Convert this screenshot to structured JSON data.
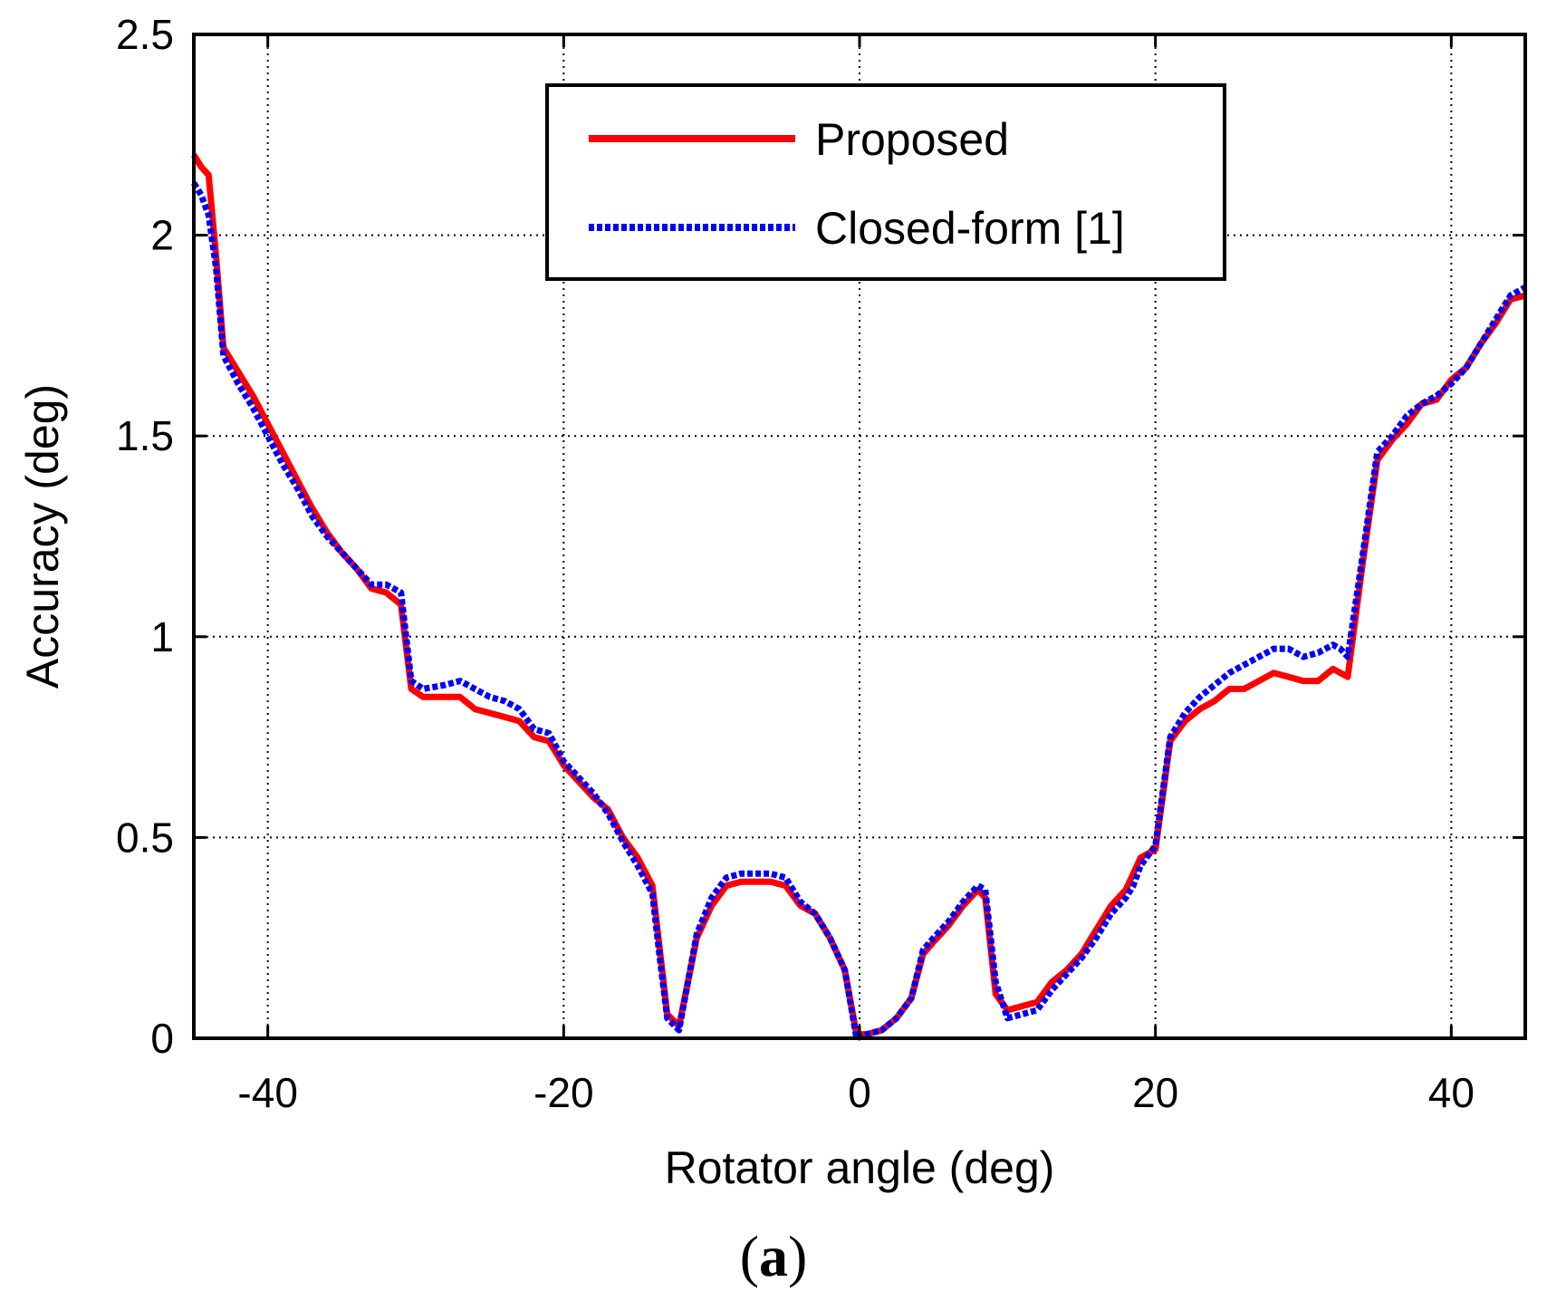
{
  "chart_data": {
    "type": "line",
    "xlabel": "Rotator angle (deg)",
    "ylabel": "Accuracy (deg)",
    "panel_label": {
      "open": "(",
      "letter": "a",
      "close": ")"
    },
    "xlim": [
      -45,
      45
    ],
    "ylim": [
      0,
      2.5
    ],
    "xticks": [
      -40,
      -20,
      0,
      20,
      40
    ],
    "xtick_labels": [
      "-40",
      "-20",
      "0",
      "20",
      "40"
    ],
    "yticks": [
      0,
      0.5,
      1,
      1.5,
      2,
      2.5
    ],
    "ytick_labels": [
      "0",
      "0.5",
      "1",
      "1.5",
      "2",
      "2.5"
    ],
    "grid": true,
    "legend_position": "top-center",
    "colors": {
      "proposed": "#ff0000",
      "closed_form": "#0000ff"
    },
    "series": [
      {
        "name": "Proposed",
        "style": "solid",
        "color": "#ff0000",
        "points": [
          [
            -45,
            2.2
          ],
          [
            -44.5,
            2.17
          ],
          [
            -44,
            2.15
          ],
          [
            -43.5,
            1.95
          ],
          [
            -43,
            1.72
          ],
          [
            -42,
            1.66
          ],
          [
            -41,
            1.6
          ],
          [
            -40,
            1.53
          ],
          [
            -39,
            1.46
          ],
          [
            -38,
            1.39
          ],
          [
            -37,
            1.32
          ],
          [
            -36,
            1.26
          ],
          [
            -35,
            1.21
          ],
          [
            -34,
            1.17
          ],
          [
            -33,
            1.12
          ],
          [
            -32,
            1.11
          ],
          [
            -31,
            1.08
          ],
          [
            -30.3,
            0.87
          ],
          [
            -29.5,
            0.85
          ],
          [
            -28,
            0.85
          ],
          [
            -27,
            0.85
          ],
          [
            -26,
            0.82
          ],
          [
            -25,
            0.81
          ],
          [
            -24,
            0.8
          ],
          [
            -23,
            0.79
          ],
          [
            -22,
            0.75
          ],
          [
            -21,
            0.74
          ],
          [
            -20,
            0.68
          ],
          [
            -19,
            0.64
          ],
          [
            -18,
            0.6
          ],
          [
            -17,
            0.57
          ],
          [
            -16,
            0.5
          ],
          [
            -15,
            0.45
          ],
          [
            -14,
            0.38
          ],
          [
            -13.5,
            0.22
          ],
          [
            -13,
            0.06
          ],
          [
            -12.2,
            0.03
          ],
          [
            -11,
            0.25
          ],
          [
            -10,
            0.33
          ],
          [
            -9,
            0.38
          ],
          [
            -8,
            0.39
          ],
          [
            -7,
            0.39
          ],
          [
            -6,
            0.39
          ],
          [
            -5,
            0.38
          ],
          [
            -4,
            0.33
          ],
          [
            -3,
            0.31
          ],
          [
            -2,
            0.25
          ],
          [
            -1,
            0.17
          ],
          [
            -0.2,
            0.01
          ],
          [
            0.5,
            0.01
          ],
          [
            1.5,
            0.02
          ],
          [
            2.5,
            0.05
          ],
          [
            3.5,
            0.1
          ],
          [
            4.3,
            0.21
          ],
          [
            5,
            0.24
          ],
          [
            6,
            0.28
          ],
          [
            7,
            0.33
          ],
          [
            8,
            0.37
          ],
          [
            8.5,
            0.35
          ],
          [
            9.2,
            0.11
          ],
          [
            10,
            0.07
          ],
          [
            11,
            0.08
          ],
          [
            12,
            0.09
          ],
          [
            13,
            0.14
          ],
          [
            14,
            0.17
          ],
          [
            15,
            0.21
          ],
          [
            16,
            0.27
          ],
          [
            17,
            0.33
          ],
          [
            18,
            0.37
          ],
          [
            18.5,
            0.41
          ],
          [
            19,
            0.45
          ],
          [
            20,
            0.47
          ],
          [
            21,
            0.74
          ],
          [
            22,
            0.79
          ],
          [
            23,
            0.82
          ],
          [
            24,
            0.84
          ],
          [
            25,
            0.87
          ],
          [
            26,
            0.87
          ],
          [
            27,
            0.89
          ],
          [
            28,
            0.91
          ],
          [
            29,
            0.9
          ],
          [
            30,
            0.89
          ],
          [
            31,
            0.89
          ],
          [
            32,
            0.92
          ],
          [
            32.5,
            0.91
          ],
          [
            33,
            0.9
          ],
          [
            34,
            1.18
          ],
          [
            35,
            1.44
          ],
          [
            36,
            1.49
          ],
          [
            37,
            1.53
          ],
          [
            38,
            1.58
          ],
          [
            39,
            1.59
          ],
          [
            40,
            1.64
          ],
          [
            41,
            1.67
          ],
          [
            42,
            1.73
          ],
          [
            43,
            1.78
          ],
          [
            44,
            1.84
          ],
          [
            45,
            1.85
          ]
        ]
      },
      {
        "name": "Closed-form [1]",
        "style": "dotted",
        "color": "#0000ff",
        "points": [
          [
            -45,
            2.13
          ],
          [
            -44.5,
            2.1
          ],
          [
            -44,
            2.05
          ],
          [
            -43.5,
            1.92
          ],
          [
            -43,
            1.7
          ],
          [
            -42,
            1.63
          ],
          [
            -41,
            1.57
          ],
          [
            -40,
            1.5
          ],
          [
            -39,
            1.43
          ],
          [
            -38,
            1.37
          ],
          [
            -37,
            1.3
          ],
          [
            -36,
            1.25
          ],
          [
            -35,
            1.21
          ],
          [
            -34,
            1.17
          ],
          [
            -33,
            1.13
          ],
          [
            -32,
            1.13
          ],
          [
            -31,
            1.11
          ],
          [
            -30.3,
            0.89
          ],
          [
            -29.5,
            0.87
          ],
          [
            -28,
            0.88
          ],
          [
            -27,
            0.89
          ],
          [
            -26,
            0.87
          ],
          [
            -25,
            0.85
          ],
          [
            -24,
            0.84
          ],
          [
            -23,
            0.82
          ],
          [
            -22,
            0.77
          ],
          [
            -21,
            0.76
          ],
          [
            -20,
            0.69
          ],
          [
            -19,
            0.65
          ],
          [
            -18,
            0.61
          ],
          [
            -17,
            0.56
          ],
          [
            -16,
            0.49
          ],
          [
            -15,
            0.43
          ],
          [
            -14,
            0.36
          ],
          [
            -13.5,
            0.2
          ],
          [
            -13,
            0.05
          ],
          [
            -12.2,
            0.02
          ],
          [
            -11,
            0.26
          ],
          [
            -10,
            0.35
          ],
          [
            -9,
            0.4
          ],
          [
            -8,
            0.41
          ],
          [
            -7,
            0.41
          ],
          [
            -6,
            0.41
          ],
          [
            -5,
            0.4
          ],
          [
            -4,
            0.34
          ],
          [
            -3,
            0.31
          ],
          [
            -2,
            0.25
          ],
          [
            -1,
            0.17
          ],
          [
            -0.2,
            0.0
          ],
          [
            0.5,
            0.01
          ],
          [
            1.5,
            0.02
          ],
          [
            2.5,
            0.05
          ],
          [
            3.5,
            0.1
          ],
          [
            4.3,
            0.22
          ],
          [
            5,
            0.25
          ],
          [
            6,
            0.29
          ],
          [
            7,
            0.34
          ],
          [
            8,
            0.38
          ],
          [
            8.5,
            0.37
          ],
          [
            9.2,
            0.14
          ],
          [
            10,
            0.05
          ],
          [
            11,
            0.06
          ],
          [
            12,
            0.07
          ],
          [
            13,
            0.12
          ],
          [
            14,
            0.16
          ],
          [
            15,
            0.2
          ],
          [
            16,
            0.25
          ],
          [
            17,
            0.31
          ],
          [
            18,
            0.35
          ],
          [
            18.5,
            0.38
          ],
          [
            19,
            0.43
          ],
          [
            20,
            0.48
          ],
          [
            21,
            0.75
          ],
          [
            22,
            0.81
          ],
          [
            23,
            0.85
          ],
          [
            24,
            0.88
          ],
          [
            25,
            0.91
          ],
          [
            26,
            0.93
          ],
          [
            27,
            0.95
          ],
          [
            28,
            0.97
          ],
          [
            29,
            0.97
          ],
          [
            30,
            0.95
          ],
          [
            31,
            0.96
          ],
          [
            32,
            0.98
          ],
          [
            32.5,
            0.97
          ],
          [
            33,
            0.95
          ],
          [
            34,
            1.2
          ],
          [
            35,
            1.46
          ],
          [
            36,
            1.5
          ],
          [
            37,
            1.55
          ],
          [
            38,
            1.58
          ],
          [
            39,
            1.6
          ],
          [
            40,
            1.63
          ],
          [
            41,
            1.67
          ],
          [
            42,
            1.73
          ],
          [
            43,
            1.79
          ],
          [
            44,
            1.85
          ],
          [
            45,
            1.87
          ]
        ]
      }
    ]
  }
}
